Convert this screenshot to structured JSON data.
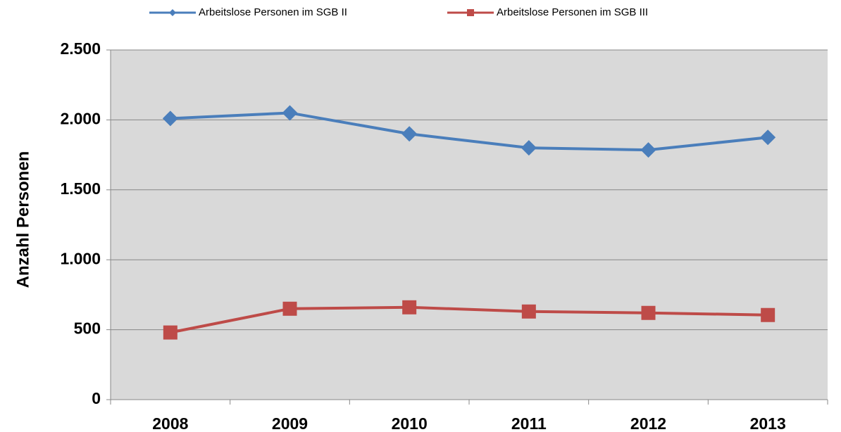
{
  "chart_data": {
    "type": "line",
    "y_label": "Anzahl Personen",
    "categories": [
      "2008",
      "2009",
      "2010",
      "2011",
      "2012",
      "2013"
    ],
    "series": [
      {
        "name": "Arbeitslose Personen im SGB II",
        "color": "#4a7ebb",
        "marker": "diamond",
        "values": [
          2010,
          2050,
          1900,
          1800,
          1785,
          1875
        ]
      },
      {
        "name": "Arbeitslose Personen im SGB III",
        "color": "#be4b48",
        "marker": "square",
        "values": [
          480,
          650,
          660,
          630,
          620,
          605
        ]
      }
    ],
    "ylim": [
      0,
      2500
    ],
    "yticks": [
      0,
      500,
      {
        "value": 1000,
        "label": "1.000"
      },
      {
        "value": 1500,
        "label": "1.500"
      },
      {
        "value": 2000,
        "label": "2.000"
      },
      {
        "value": 2500,
        "label": "2.500"
      }
    ],
    "grid": true,
    "legend": "top"
  }
}
